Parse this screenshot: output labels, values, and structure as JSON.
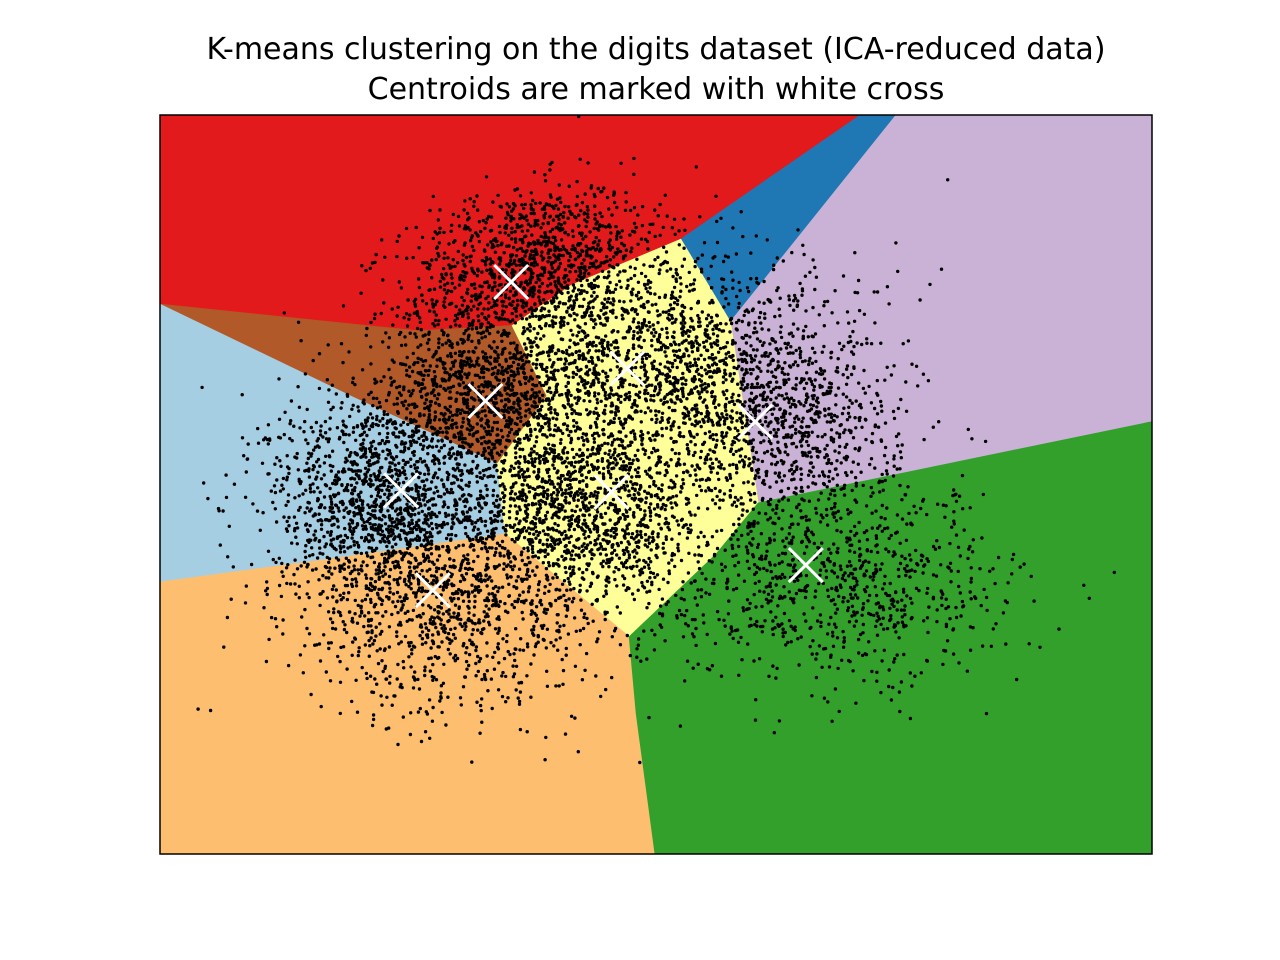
{
  "chart_data": {
    "type": "scatter",
    "title": "K-means clustering on the digits dataset (ICA-reduced data)",
    "subtitle": "Centroids are marked with white cross",
    "xlabel": "",
    "ylabel": "",
    "ticks_visible": false,
    "grid": false,
    "legend": "none",
    "point_color": "#000000",
    "centroid_color": "#ffffff",
    "xlim": [
      0,
      100
    ],
    "ylim": [
      0,
      100
    ],
    "centroids": [
      {
        "x": 35.4,
        "y": 77.4
      },
      {
        "x": 47.1,
        "y": 65.7
      },
      {
        "x": 32.8,
        "y": 61.3
      },
      {
        "x": 60.0,
        "y": 58.5
      },
      {
        "x": 24.3,
        "y": 49.2
      },
      {
        "x": 45.5,
        "y": 49.0
      },
      {
        "x": 27.5,
        "y": 35.7
      },
      {
        "x": 65.1,
        "y": 39.1
      }
    ],
    "decision_regions": [
      {
        "color": "#e31a1c",
        "points": [
          [
            0,
            100
          ],
          [
            70.6,
            100
          ],
          [
            52.5,
            83.2
          ],
          [
            41.5,
            77.0
          ],
          [
            35.5,
            71.5
          ],
          [
            26.0,
            70.8
          ],
          [
            0,
            74.4
          ]
        ]
      },
      {
        "color": "#1f78b4",
        "points": [
          [
            70.6,
            100
          ],
          [
            74.2,
            100
          ],
          [
            57.5,
            72.0
          ],
          [
            52.5,
            83.2
          ]
        ]
      },
      {
        "color": "#cab2d6",
        "points": [
          [
            74.2,
            100
          ],
          [
            100,
            100
          ],
          [
            100,
            58.5
          ],
          [
            60.3,
            47.5
          ],
          [
            57.5,
            72.0
          ]
        ]
      },
      {
        "color": "#b15928",
        "points": [
          [
            0,
            74.4
          ],
          [
            26.0,
            70.8
          ],
          [
            35.5,
            71.5
          ],
          [
            39.0,
            62.0
          ],
          [
            34.0,
            52.8
          ],
          [
            19.5,
            61.8
          ]
        ]
      },
      {
        "color": "#a6cee3",
        "points": [
          [
            0,
            74.4
          ],
          [
            19.5,
            61.8
          ],
          [
            34.0,
            52.8
          ],
          [
            34.8,
            43.3
          ],
          [
            16.5,
            39.8
          ],
          [
            0,
            36.8
          ]
        ]
      },
      {
        "color": "#ffff99",
        "points": [
          [
            35.5,
            71.5
          ],
          [
            41.5,
            77.0
          ],
          [
            52.5,
            83.2
          ],
          [
            57.5,
            72.0
          ],
          [
            60.3,
            47.5
          ],
          [
            56.0,
            40.5
          ],
          [
            47.3,
            29.4
          ],
          [
            34.8,
            43.3
          ],
          [
            34.0,
            52.8
          ],
          [
            39.0,
            62.0
          ]
        ]
      },
      {
        "color": "#fdbf6f",
        "points": [
          [
            0,
            36.8
          ],
          [
            16.5,
            39.8
          ],
          [
            34.8,
            43.3
          ],
          [
            47.3,
            29.4
          ],
          [
            48.0,
            19.0
          ],
          [
            49.9,
            0
          ],
          [
            0,
            0
          ]
        ]
      },
      {
        "color": "#33a02c",
        "points": [
          [
            100,
            58.5
          ],
          [
            60.3,
            47.5
          ],
          [
            56.0,
            40.5
          ],
          [
            47.3,
            29.4
          ],
          [
            48.0,
            19.0
          ],
          [
            49.9,
            0
          ],
          [
            100,
            0
          ]
        ]
      }
    ],
    "cluster_clouds": [
      {
        "cx": 38.0,
        "cy": 80.0,
        "sx": 6.5,
        "sy": 5.0,
        "n": 1100,
        "rot": 0.35
      },
      {
        "cx": 49.0,
        "cy": 67.0,
        "sx": 10.0,
        "sy": 6.5,
        "n": 1500,
        "rot": 0.3
      },
      {
        "cx": 32.0,
        "cy": 62.0,
        "sx": 6.0,
        "sy": 6.0,
        "n": 1000,
        "rot": 0.0
      },
      {
        "cx": 62.0,
        "cy": 58.0,
        "sx": 6.5,
        "sy": 6.0,
        "n": 900,
        "rot": -0.2
      },
      {
        "cx": 22.0,
        "cy": 48.0,
        "sx": 5.5,
        "sy": 7.0,
        "n": 1300,
        "rot": 0.0
      },
      {
        "cx": 43.0,
        "cy": 47.0,
        "sx": 6.0,
        "sy": 6.5,
        "n": 1300,
        "rot": 0.0
      },
      {
        "cx": 30.0,
        "cy": 34.0,
        "sx": 8.5,
        "sy": 7.5,
        "n": 1100,
        "rot": 0.1
      },
      {
        "cx": 68.0,
        "cy": 37.0,
        "sx": 9.0,
        "sy": 7.0,
        "n": 900,
        "rot": -0.15
      }
    ]
  }
}
